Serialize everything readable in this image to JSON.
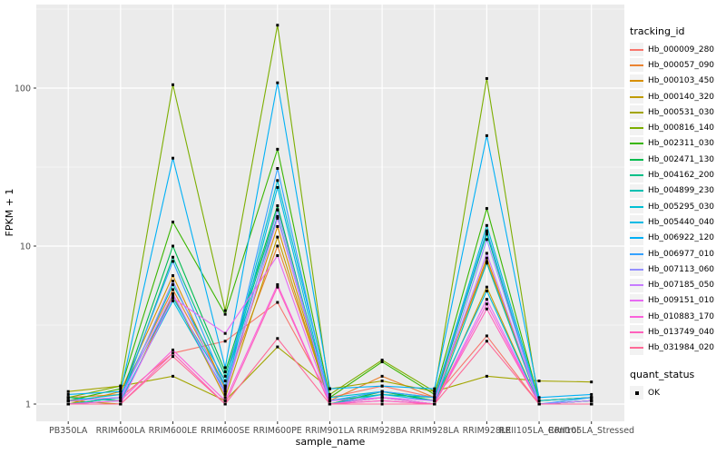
{
  "chart_data": {
    "type": "line",
    "title": "",
    "xlabel": "sample_name",
    "ylabel": "FPKM + 1",
    "y_scale": "log10",
    "y_ticks": [
      1,
      10,
      100
    ],
    "y_minor_gridlines": [
      3.1623,
      31.623,
      316.23
    ],
    "ylim": [
      0.78,
      340
    ],
    "grid": true,
    "panel_bg": "#EBEBEB",
    "grid_color": "#FFFFFF",
    "tick_color": "#333333",
    "axis_text_color": "#4D4D4D",
    "point_color": "#000000",
    "point_shape": "filled-square",
    "legend_position": "right",
    "legend_title": "tracking_id",
    "quant_legend": {
      "title": "quant_status",
      "items": [
        "OK"
      ]
    },
    "categories": [
      "PB350LA",
      "RRIM600LA",
      "RRIM600LE",
      "RRIM600SE",
      "RRIM600PE",
      "RRIM901LA",
      "RRIM928BA",
      "RRIM928LA",
      "RRIM928LE",
      "RRII105LA_Control",
      "RRII105LA_Stressed"
    ],
    "series": [
      {
        "name": "Hb_000009_280",
        "color": "#F8766D",
        "values": [
          1.05,
          1.1,
          2.1,
          2.5,
          4.4,
          1.1,
          1.3,
          1.1,
          2.7,
          1.0,
          1.05
        ]
      },
      {
        "name": "Hb_000057_090",
        "color": "#EA8331",
        "values": [
          1.1,
          1.15,
          5.3,
          1.3,
          10.0,
          1.05,
          1.5,
          1.1,
          8.0,
          1.05,
          1.1
        ]
      },
      {
        "name": "Hb_000103_450",
        "color": "#D89000",
        "values": [
          1.0,
          1.2,
          6.5,
          1.25,
          13.3,
          1.0,
          1.2,
          1.05,
          8.4,
          1.0,
          1.0
        ]
      },
      {
        "name": "Hb_000140_320",
        "color": "#C09B00",
        "values": [
          1.05,
          1.0,
          4.9,
          1.1,
          11.4,
          1.0,
          1.1,
          1.0,
          5.5,
          1.0,
          1.05
        ]
      },
      {
        "name": "Hb_000531_030",
        "color": "#A3A500",
        "values": [
          1.2,
          1.3,
          1.5,
          1.05,
          2.3,
          1.25,
          1.4,
          1.2,
          1.5,
          1.4,
          1.38
        ]
      },
      {
        "name": "Hb_000816_140",
        "color": "#7CAE00",
        "values": [
          1.1,
          1.3,
          105.0,
          3.9,
          250.0,
          1.15,
          1.9,
          1.2,
          115.0,
          1.0,
          1.05
        ]
      },
      {
        "name": "Hb_002311_030",
        "color": "#39B600",
        "values": [
          1.05,
          1.25,
          14.2,
          3.7,
          41.0,
          1.1,
          1.85,
          1.15,
          17.3,
          1.05,
          1.1
        ]
      },
      {
        "name": "Hb_002471_130",
        "color": "#00BB4E",
        "values": [
          1.0,
          1.1,
          10.0,
          1.6,
          18.0,
          1.0,
          1.2,
          1.05,
          12.2,
          1.0,
          1.0
        ]
      },
      {
        "name": "Hb_004162_200",
        "color": "#00C087",
        "values": [
          1.1,
          1.05,
          8.5,
          1.5,
          17.0,
          1.05,
          1.15,
          1.1,
          11.9,
          1.0,
          1.05
        ]
      },
      {
        "name": "Hb_004899_230",
        "color": "#00C0B2",
        "values": [
          1.0,
          1.1,
          5.7,
          1.4,
          15.4,
          1.0,
          1.1,
          1.0,
          7.8,
          1.0,
          1.0
        ]
      },
      {
        "name": "Hb_005295_030",
        "color": "#00BFD3",
        "values": [
          1.05,
          1.15,
          4.7,
          1.3,
          26.0,
          1.1,
          1.2,
          1.1,
          13.5,
          1.05,
          1.1
        ]
      },
      {
        "name": "Hb_005440_040",
        "color": "#00BAE5",
        "values": [
          1.0,
          1.05,
          4.5,
          1.2,
          23.5,
          1.0,
          1.15,
          1.05,
          5.2,
          1.0,
          1.05
        ]
      },
      {
        "name": "Hb_006922_120",
        "color": "#00B0F6",
        "values": [
          1.15,
          1.2,
          36.0,
          1.7,
          108.0,
          1.25,
          1.3,
          1.25,
          50.0,
          1.1,
          1.15
        ]
      },
      {
        "name": "Hb_006977_010",
        "color": "#35A2FF",
        "values": [
          1.05,
          1.1,
          8.0,
          1.3,
          31.0,
          1.05,
          1.2,
          1.1,
          12.5,
          1.0,
          1.1
        ]
      },
      {
        "name": "Hb_007113_060",
        "color": "#9590FF",
        "values": [
          1.0,
          1.05,
          6.0,
          1.2,
          16.9,
          1.0,
          1.1,
          1.0,
          11.0,
          1.0,
          1.0
        ]
      },
      {
        "name": "Hb_007185_050",
        "color": "#C77CFF",
        "values": [
          1.05,
          1.1,
          5.0,
          1.15,
          15.0,
          1.05,
          1.1,
          1.05,
          9.0,
          1.0,
          1.05
        ]
      },
      {
        "name": "Hb_009151_010",
        "color": "#E76BF3",
        "values": [
          1.0,
          1.0,
          4.7,
          2.8,
          8.7,
          1.0,
          1.05,
          1.0,
          4.6,
          1.0,
          1.0
        ]
      },
      {
        "name": "Hb_010883_170",
        "color": "#FA62DB",
        "values": [
          1.0,
          1.05,
          2.2,
          1.05,
          5.7,
          1.0,
          1.1,
          1.0,
          4.3,
          1.0,
          1.0
        ]
      },
      {
        "name": "Hb_013749_040",
        "color": "#FF62BC",
        "values": [
          1.0,
          1.0,
          2.1,
          1.0,
          5.5,
          1.0,
          1.05,
          1.0,
          4.0,
          1.0,
          1.0
        ]
      },
      {
        "name": "Hb_031984_020",
        "color": "#FF6A98",
        "values": [
          1.0,
          1.0,
          2.0,
          1.0,
          2.6,
          1.0,
          1.0,
          1.0,
          2.5,
          1.0,
          1.0
        ]
      }
    ]
  }
}
